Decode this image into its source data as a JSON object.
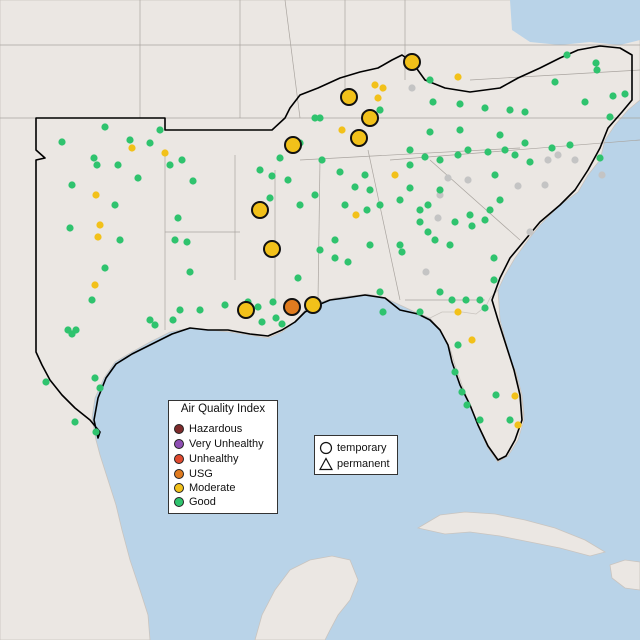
{
  "legend": {
    "title": "Air Quality Index",
    "categories": [
      {
        "label": "Hazardous",
        "color": "#7e2b2b"
      },
      {
        "label": "Very Unhealthy",
        "color": "#8f4fb4"
      },
      {
        "label": "Unhealthy",
        "color": "#e04a2f"
      },
      {
        "label": "USG",
        "color": "#e07b1f"
      },
      {
        "label": "Moderate",
        "color": "#f2c11a"
      },
      {
        "label": "Good",
        "color": "#2fc36e"
      }
    ]
  },
  "monitor_types": {
    "temporary_label": "temporary",
    "permanent_label": "permanent"
  },
  "colors": {
    "ocean": "#b9d3e8",
    "land": "#ebe7e3",
    "no_data_gray": "#c4c4c4",
    "region_outline": "#000000"
  },
  "temporary_monitors": [
    {
      "aqi": "Moderate"
    },
    {
      "aqi": "Moderate"
    },
    {
      "aqi": "Moderate"
    },
    {
      "aqi": "Moderate"
    },
    {
      "aqi": "Moderate"
    },
    {
      "aqi": "Moderate"
    },
    {
      "aqi": "Moderate"
    },
    {
      "aqi": "Moderate"
    },
    {
      "aqi": "USG"
    },
    {
      "aqi": "Moderate"
    }
  ]
}
